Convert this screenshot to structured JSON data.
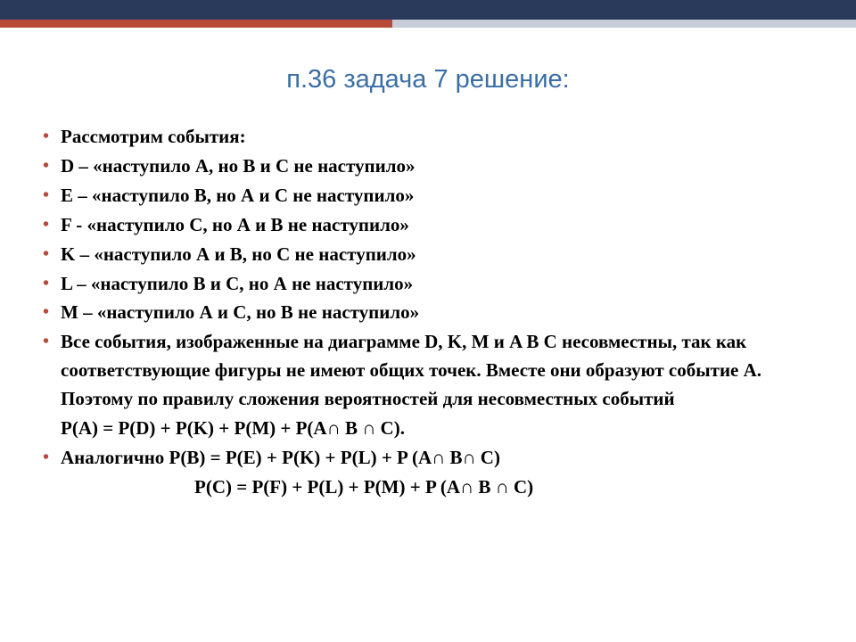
{
  "colors": {
    "top_band": "#2a3a5a",
    "accent_left": "#b94a3a",
    "accent_right": "#c8ccd8",
    "title": "#3a6ea5",
    "bullet": "#b94a3a",
    "text": "#000000",
    "background": "#ffffff"
  },
  "typography": {
    "title_fontsize": 29,
    "body_fontsize": 21,
    "title_font": "Verdana",
    "body_font": "Georgia"
  },
  "title": "п.36 задача 7 решение:",
  "items": [
    "Рассмотрим события:",
    "D – «наступило А, но В и С не наступило»",
    "E – «наступило В, но А и С не наступило»",
    "F -  «наступило С, но А и В не наступило»",
    "K – «наступило А и В, но С не наступило»",
    "L – «наступило  В и С, но А не наступило»",
    "M – «наступило А и С, но В не наступило»"
  ],
  "para": "Все события, изображенные на диаграмме D, K, M и A  B  C несовместны, так как соответствующие фигуры не имеют общих точек. Вместе они образуют событие А. Поэтому по правилу сложения вероятностей для несовместных событий",
  "formula1": "P(A) = P(D) + P(K) + P(M) + P(A∩ B ∩ C).",
  "formula2_lead": "Аналогично P(B) = P(E) + P(K) + P(L) + P (A∩ B∩  C)",
  "formula3": "P(C) = P(F) + P(L) + P(M) + P (A∩  B ∩  C)"
}
